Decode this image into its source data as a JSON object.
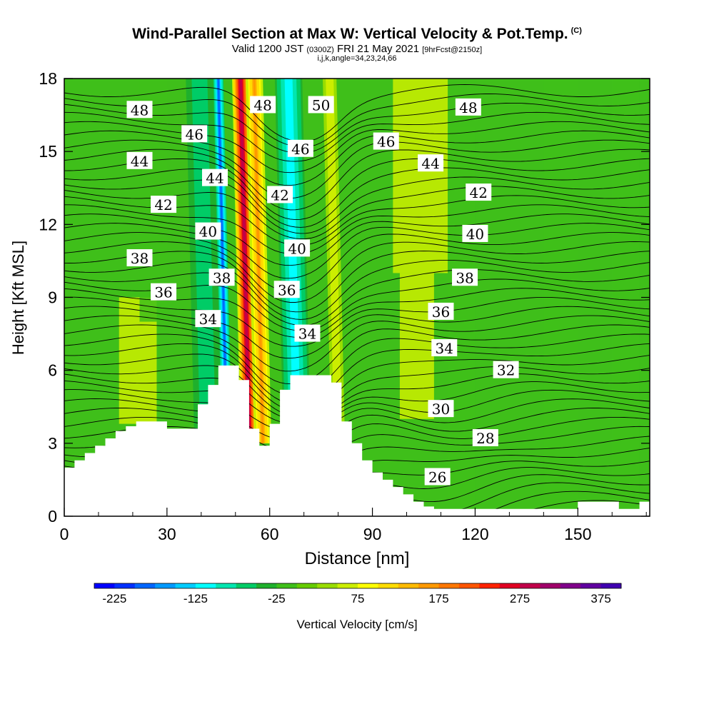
{
  "header": {
    "title_main": "Wind-Parallel Section at Max W: Vertical Velocity & Pot.Temp.",
    "title_mark": "(C)",
    "valid_prefix": "Valid 1200 JST",
    "valid_zulu": "(0300Z)",
    "valid_date": "FRI 21 May 2021",
    "forecast": "[9hrFcst@2150z]",
    "indices": "i,j,k,angle=34,23,24,66"
  },
  "colors": {
    "background_green": "#3fbf1a",
    "plot_border": "#000000",
    "terrain": "#ffffff"
  },
  "chart_data": {
    "type": "heatmap",
    "xlabel": "Distance [nm]",
    "ylabel": "Height [Kft MSL]",
    "xlim": [
      0,
      171
    ],
    "ylim": [
      0,
      18
    ],
    "xticks": [
      0,
      30,
      60,
      90,
      120,
      150
    ],
    "yticks": [
      0,
      3,
      6,
      9,
      12,
      15,
      18
    ],
    "colorbar": {
      "label": "Vertical Velocity [cm/s]",
      "tick_labels": [
        "-225",
        "-125",
        "-25",
        "75",
        "175",
        "275",
        "375"
      ],
      "tick_values": [
        -225,
        -125,
        -25,
        75,
        175,
        275,
        375
      ],
      "range": [
        -250,
        400
      ],
      "colors": [
        "#0000ff",
        "#0030ff",
        "#0066ff",
        "#0099ff",
        "#00ccff",
        "#00ffff",
        "#00e6b0",
        "#00cc66",
        "#1fb02c",
        "#3fbf1a",
        "#66cc00",
        "#99dd00",
        "#ccee00",
        "#ffff00",
        "#ffdd00",
        "#ffbb00",
        "#ff9900",
        "#ff7700",
        "#ff5500",
        "#ff2200",
        "#e00022",
        "#c0004a",
        "#a0006a",
        "#80008a",
        "#6000a0",
        "#4000b0"
      ]
    },
    "bands": [
      {
        "name": "downdraft-west",
        "x_center": 47.5,
        "width": 3,
        "w": -200
      },
      {
        "name": "downdraft-west-edge",
        "x_center": 42,
        "width": 8,
        "w": -75
      },
      {
        "name": "updraft-core",
        "x_center": 54,
        "width": 5,
        "w": 325
      },
      {
        "name": "updraft-flank",
        "x_center": 58,
        "width": 5,
        "w": 175
      },
      {
        "name": "downdraft-east",
        "x_center": 68,
        "width": 8,
        "w": -125
      },
      {
        "name": "updraft-east",
        "x_center": 80,
        "width": 4,
        "w": 75
      }
    ],
    "terrain_profile": {
      "x": [
        0,
        3,
        6,
        9,
        12,
        15,
        18,
        21,
        24,
        27,
        30,
        33,
        36,
        39,
        42,
        45,
        48,
        51,
        54,
        57,
        60,
        63,
        66,
        69,
        72,
        75,
        78,
        81,
        84,
        87,
        90,
        93,
        96,
        99,
        102,
        105,
        108,
        140,
        150,
        156,
        162,
        168,
        171
      ],
      "height": [
        2.0,
        2.3,
        2.6,
        2.9,
        3.2,
        3.5,
        3.7,
        3.9,
        3.9,
        3.9,
        3.6,
        3.6,
        3.6,
        4.6,
        5.4,
        6.2,
        6.2,
        5.6,
        3.6,
        2.9,
        3.8,
        5.2,
        5.8,
        5.8,
        5.8,
        5.8,
        5.5,
        3.9,
        3.0,
        2.3,
        1.8,
        1.5,
        1.2,
        0.9,
        0.6,
        0.4,
        0.3,
        0.3,
        0.6,
        0.6,
        0.3,
        0.6,
        0.6
      ]
    },
    "theta_labels": [
      {
        "text": "48",
        "x": 22,
        "y": 16.7
      },
      {
        "text": "46",
        "x": 38,
        "y": 15.7
      },
      {
        "text": "44",
        "x": 22,
        "y": 14.6
      },
      {
        "text": "44",
        "x": 44,
        "y": 13.9
      },
      {
        "text": "42",
        "x": 29,
        "y": 12.8
      },
      {
        "text": "40",
        "x": 42,
        "y": 11.7
      },
      {
        "text": "38",
        "x": 22,
        "y": 10.6
      },
      {
        "text": "38",
        "x": 46,
        "y": 9.8
      },
      {
        "text": "36",
        "x": 29,
        "y": 9.2
      },
      {
        "text": "34",
        "x": 42,
        "y": 8.1
      },
      {
        "text": "48",
        "x": 58,
        "y": 16.9
      },
      {
        "text": "50",
        "x": 75,
        "y": 16.9
      },
      {
        "text": "46",
        "x": 69,
        "y": 15.1
      },
      {
        "text": "42",
        "x": 63,
        "y": 13.2
      },
      {
        "text": "40",
        "x": 68,
        "y": 11.0
      },
      {
        "text": "36",
        "x": 65,
        "y": 9.3
      },
      {
        "text": "34",
        "x": 71,
        "y": 7.5
      },
      {
        "text": "48",
        "x": 118,
        "y": 16.8
      },
      {
        "text": "46",
        "x": 94,
        "y": 15.4
      },
      {
        "text": "44",
        "x": 107,
        "y": 14.5
      },
      {
        "text": "42",
        "x": 121,
        "y": 13.3
      },
      {
        "text": "40",
        "x": 120,
        "y": 11.6
      },
      {
        "text": "38",
        "x": 117,
        "y": 9.8
      },
      {
        "text": "36",
        "x": 110,
        "y": 8.4
      },
      {
        "text": "34",
        "x": 111,
        "y": 6.9
      },
      {
        "text": "32",
        "x": 129,
        "y": 6.0
      },
      {
        "text": "30",
        "x": 110,
        "y": 4.4
      },
      {
        "text": "28",
        "x": 123,
        "y": 3.2
      },
      {
        "text": "26",
        "x": 109,
        "y": 1.6
      }
    ]
  }
}
